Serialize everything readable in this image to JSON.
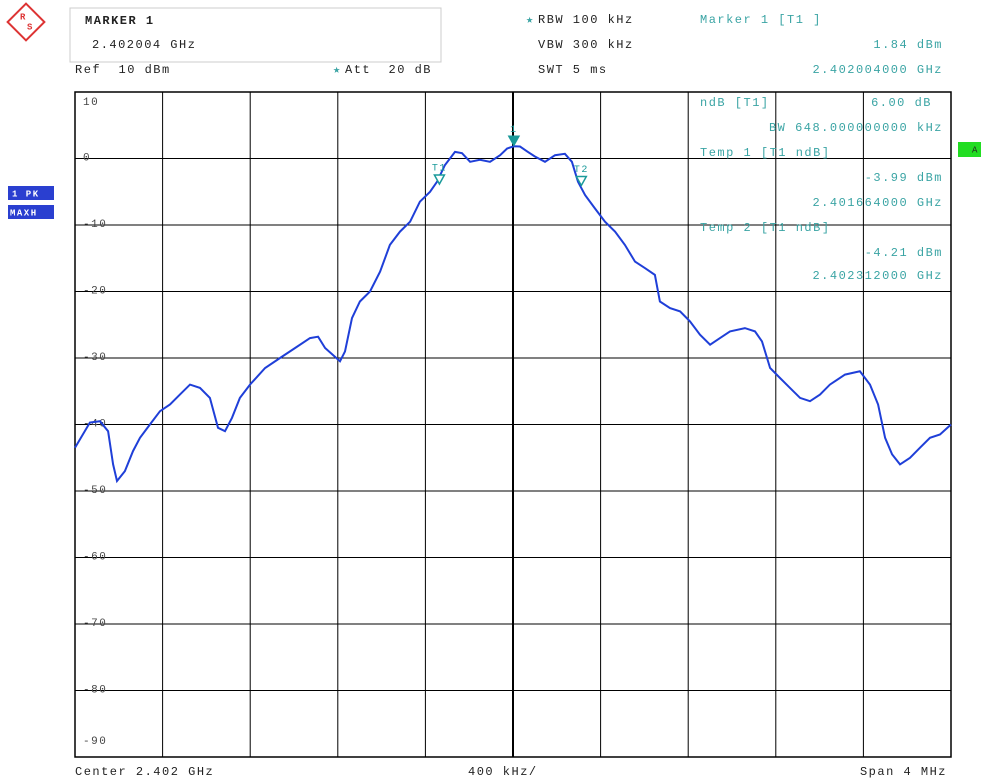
{
  "header": {
    "marker_title": "MARKER 1",
    "marker_freq": "2.402004 GHz",
    "ref": "Ref  10 dBm",
    "att": "Att  20 dB",
    "rbw": "RBW 100 kHz",
    "vbw": "VBW 300 kHz",
    "swt": "SWT 5 ms",
    "marker_info": "Marker 1 [T1 ]",
    "marker_level": "1.84 dBm",
    "marker_freq_full": "2.402004000 GHz"
  },
  "ndb_panel": {
    "ndb_label": "ndB [T1]",
    "ndb_value": "6.00 dB",
    "bw": "BW 648.000000000 kHz",
    "temp1": "Temp 1 [T1 ndB]",
    "temp1_level": "-3.99 dBm",
    "temp1_freq": "2.401664000 GHz",
    "temp2": "Temp 2 [T1 ndB]",
    "temp2_level": "-4.21 dBm",
    "temp2_freq": "2.402312000 GHz"
  },
  "side": {
    "trace": "1 PK",
    "mode": "MAXH",
    "screen": "A"
  },
  "footer": {
    "center": "Center 2.402 GHz",
    "div": "400 kHz/",
    "span": "Span 4 MHz"
  },
  "chart_data": {
    "type": "line",
    "color": "#1f3fd8",
    "x": [
      2400.0,
      2400.068,
      2400.114,
      2400.151,
      2400.174,
      2400.192,
      2400.228,
      2400.265,
      2400.297,
      2400.342,
      2400.388,
      2400.434,
      2400.479,
      2400.525,
      2400.571,
      2400.616,
      2400.653,
      2400.685,
      2400.717,
      2400.753,
      2400.799,
      2400.868,
      2400.936,
      2401.005,
      2401.073,
      2401.11,
      2401.142,
      2401.21,
      2401.233,
      2401.265,
      2401.301,
      2401.347,
      2401.393,
      2401.438,
      2401.484,
      2401.53,
      2401.575,
      2401.621,
      2401.653,
      2401.689,
      2401.735,
      2401.767,
      2401.804,
      2401.849,
      2401.895,
      2401.941,
      2401.973,
      2402.004,
      2402.032,
      2402.068,
      2402.1,
      2402.146,
      2402.192,
      2402.237,
      2402.269,
      2402.297,
      2402.329,
      2402.374,
      2402.42,
      2402.466,
      2402.511,
      2402.557,
      2402.603,
      2402.648,
      2402.671,
      2402.717,
      2402.763,
      2402.808,
      2402.854,
      2402.9,
      2402.945,
      2402.991,
      2403.059,
      2403.105,
      2403.137,
      2403.174,
      2403.219,
      2403.265,
      2403.311,
      2403.356,
      2403.402,
      2403.447,
      2403.516,
      2403.584,
      2403.63,
      2403.667,
      2403.699,
      2403.731,
      2403.767,
      2403.813,
      2403.858,
      2403.904,
      2403.95,
      2404.0
    ],
    "values": [
      -43.5,
      -39.7,
      -39.5,
      -41,
      -46,
      -48.5,
      -47,
      -44,
      -42,
      -40,
      -38,
      -37,
      -35.5,
      -34,
      -34.5,
      -36,
      -40.5,
      -41,
      -39,
      -36,
      -34,
      -31.5,
      -30,
      -28.5,
      -27,
      -26.8,
      -28.5,
      -30.5,
      -29,
      -24,
      -21.5,
      -20,
      -17,
      -13,
      -11,
      -9.5,
      -6.5,
      -5,
      -3.5,
      -1,
      1,
      0.8,
      -0.5,
      -0.2,
      -0.5,
      0.5,
      1.5,
      1.84,
      1.8,
      1,
      0.3,
      -0.5,
      0.5,
      0.7,
      -0.5,
      -3.5,
      -5.5,
      -7.5,
      -9.5,
      -11,
      -13,
      -15.5,
      -16.5,
      -17.5,
      -21.5,
      -22.5,
      -23,
      -24.5,
      -26.5,
      -28,
      -27,
      -26,
      -25.5,
      -26,
      -27.5,
      -31.5,
      -33,
      -34.5,
      -36,
      -36.5,
      -35.5,
      -34,
      -32.5,
      -32,
      -34,
      -37,
      -42,
      -44.5,
      -46,
      -45,
      -43.5,
      -42,
      -41.5,
      -40
    ],
    "xlim": [
      2400,
      2404
    ],
    "xticks": [
      2400,
      2400.4,
      2400.8,
      2401.2,
      2401.6,
      2402,
      2402.4,
      2402.8,
      2403.2,
      2403.6,
      2404
    ],
    "ylim": [
      -90,
      10
    ],
    "yticks": [
      10,
      0,
      -10,
      -20,
      -30,
      -40,
      -50,
      -60,
      -70,
      -80,
      -90
    ],
    "grid": true,
    "markers": [
      {
        "label": "1",
        "x": 2402.004,
        "y": 1.84,
        "filled": true
      },
      {
        "label": "T1",
        "x": 2401.664,
        "y": -3.99,
        "filled": false
      },
      {
        "label": "T2",
        "x": 2402.312,
        "y": -4.21,
        "filled": false
      }
    ],
    "marker_color": "#1a9a9a"
  }
}
